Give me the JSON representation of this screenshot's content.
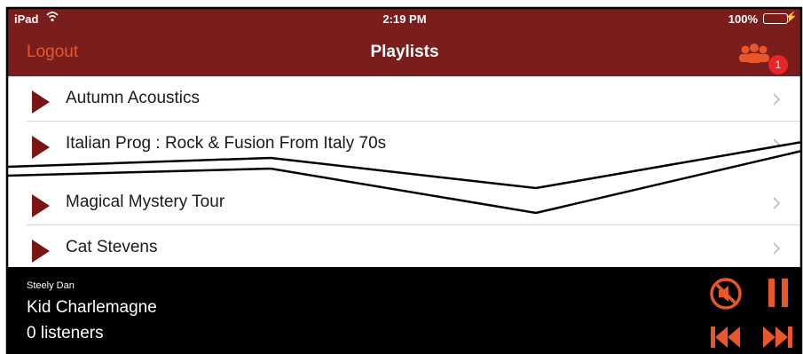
{
  "status_bar": {
    "carrier": "iPad",
    "time": "2:19 PM",
    "battery": "100%"
  },
  "nav_bar": {
    "left_button": "Logout",
    "title": "Playlists",
    "badge_count": "1",
    "right_icon": "people-group-icon"
  },
  "playlists": [
    {
      "title": "Autumn Acoustics"
    },
    {
      "title": "Italian Prog : Rock & Fusion From Italy 70s"
    },
    {
      "title": "Magical Mystery Tour"
    },
    {
      "title": "Cat Stevens"
    }
  ],
  "now_playing": {
    "artist": "Steely Dan",
    "song": "Kid Charlemagne",
    "listeners": "0 listeners"
  },
  "colors": {
    "header": "#7a1d1d",
    "accent": "#e8562a",
    "play_icon": "#7a1515",
    "player_bg": "#000000"
  }
}
